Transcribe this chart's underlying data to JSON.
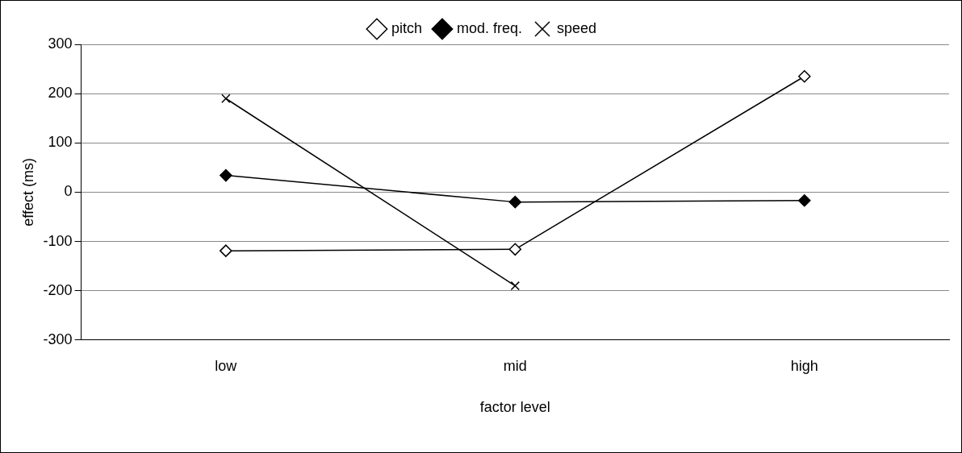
{
  "chart_data": {
    "type": "line",
    "xlabel": "factor level",
    "ylabel": "effect (ms)",
    "categories": [
      "low",
      "mid",
      "high"
    ],
    "series": [
      {
        "name": "pitch",
        "color": "#000000",
        "marker": "diamond",
        "values": [
          -119,
          -116,
          235
        ]
      },
      {
        "name": "mod. freq.",
        "color": "#000000",
        "marker": "diamond",
        "values": [
          34,
          -20,
          -17
        ]
      },
      {
        "name": "speed",
        "color": "#000000",
        "marker": "cross",
        "values": [
          190,
          -190,
          null
        ]
      }
    ],
    "ylim": [
      -300,
      300
    ],
    "yticks": [
      -300,
      -200,
      -100,
      0,
      100,
      200,
      300
    ],
    "grid": "y",
    "legend": "top"
  }
}
